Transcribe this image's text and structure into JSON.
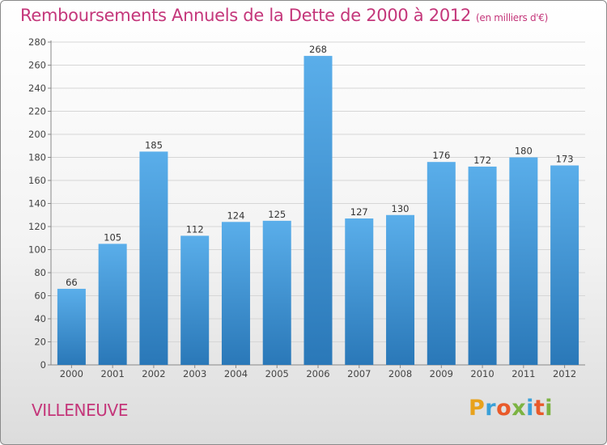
{
  "title": "Remboursements Annuels de la Dette de 2000 à 2012",
  "subtitle": "(en milliers d'€)",
  "town": "VILLENEUVE",
  "logo": {
    "letters": [
      "P",
      "r",
      "o",
      "x",
      "i",
      "t",
      "i"
    ],
    "colors": [
      "#e8a21c",
      "#3aa0d8",
      "#e95a2a",
      "#7cb342",
      "#3aa0d8",
      "#e95a2a",
      "#7cb342"
    ]
  },
  "colors": {
    "title": "#c4367a",
    "bar_top": "#5aaeea",
    "bar_bottom": "#2a78b8"
  },
  "chart_data": {
    "type": "bar",
    "categories": [
      "2000",
      "2001",
      "2002",
      "2003",
      "2004",
      "2005",
      "2006",
      "2007",
      "2008",
      "2009",
      "2010",
      "2011",
      "2012"
    ],
    "values": [
      66,
      105,
      185,
      112,
      124,
      125,
      268,
      127,
      130,
      176,
      172,
      180,
      173
    ],
    "yticks": [
      0,
      20,
      40,
      60,
      80,
      100,
      120,
      140,
      160,
      180,
      200,
      220,
      240,
      260,
      280
    ],
    "ylim": [
      0,
      280
    ],
    "grid": true
  }
}
